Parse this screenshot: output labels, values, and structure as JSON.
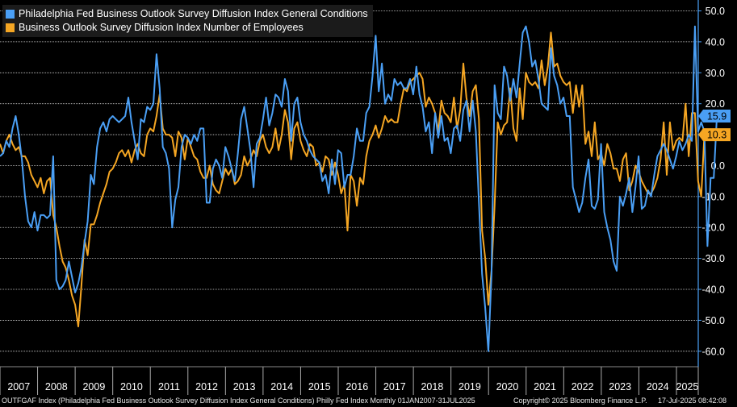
{
  "chart_data": {
    "type": "line",
    "legend_position": "top-left",
    "grid": true,
    "ylim": [
      -65,
      53
    ],
    "xlim": [
      2007.0,
      2025.58
    ],
    "y_ticks": [
      50,
      40,
      30,
      20,
      10,
      0,
      -10,
      -20,
      -30,
      -40,
      -50,
      -60
    ],
    "y_tick_labels": [
      "50.0",
      "40.0",
      "30.0",
      "20.0",
      "10.0",
      "0.0",
      "-10.0",
      "-20.0",
      "-30.0",
      "-40.0",
      "-50.0",
      "-60.0"
    ],
    "x_tick_labels": [
      "2007",
      "2008",
      "2009",
      "2010",
      "2011",
      "2012",
      "2013",
      "2014",
      "2015",
      "2016",
      "2017",
      "2018",
      "2019",
      "2020",
      "2021",
      "2022",
      "2023",
      "2024",
      "2025"
    ],
    "x_step": 0.0833,
    "series": [
      {
        "name": "Philadelphia Fed Business Outlook Survey Diffusion Index General Conditions",
        "color": "#4a9ff5",
        "last_label": "15.9",
        "values": [
          3,
          4,
          8,
          6,
          12,
          16,
          10,
          2,
          -10,
          -18,
          -20,
          -15,
          -21,
          -16,
          -16,
          -17,
          -16,
          3,
          -37,
          -40,
          -39,
          -37,
          -31,
          -36,
          -41,
          -38,
          -33,
          -25,
          -18,
          -3,
          -6,
          6,
          12,
          14,
          11,
          15,
          16,
          15,
          14,
          15,
          16,
          22,
          14,
          8,
          2,
          15,
          14,
          19,
          18,
          20,
          36,
          25,
          6,
          4,
          -1,
          -20,
          -11,
          -7,
          6,
          10,
          9,
          7,
          10,
          8,
          12,
          12,
          -12,
          -12,
          -1,
          2,
          0,
          -4,
          6,
          3,
          -1,
          -5,
          4,
          15,
          19,
          12,
          5,
          -7,
          7,
          9,
          15,
          22,
          13,
          17,
          23,
          22,
          19,
          28,
          24,
          8,
          20,
          22,
          14,
          10,
          8,
          5,
          3,
          2,
          1,
          -5,
          -3,
          -9,
          2,
          -6,
          5,
          4,
          -7,
          -3,
          -3,
          3,
          12,
          8,
          8,
          17,
          19,
          29,
          42,
          24,
          33,
          20,
          23,
          21,
          28,
          26,
          27,
          25,
          25,
          28,
          23,
          32,
          23,
          19,
          11,
          14,
          4,
          17,
          9,
          16,
          8,
          9,
          4,
          12,
          13,
          8,
          18,
          21,
          11,
          21,
          11,
          -12,
          -35,
          -46,
          -60,
          -35,
          26,
          17,
          15,
          32,
          29,
          21,
          28,
          22,
          33,
          43,
          45,
          40,
          32,
          34,
          28,
          20,
          19,
          18,
          38,
          29,
          26,
          20,
          22,
          16,
          16,
          -7,
          -11,
          -15,
          -12,
          -4,
          2,
          -13,
          -14,
          -11,
          7,
          -15,
          -20,
          -24,
          -31,
          -34,
          -10,
          -13,
          -9,
          -4,
          -15,
          -7,
          3,
          -14,
          -13,
          -8,
          -10,
          -3,
          3,
          5,
          7,
          5,
          2,
          -1,
          3,
          8,
          5,
          7,
          10,
          8,
          45,
          11,
          14,
          11,
          -26,
          -4,
          -4,
          16
        ]
      },
      {
        "name": "Business Outlook Survey Diffusion Index Number of Employees",
        "color": "#f5a623",
        "last_label": "10.3",
        "values": [
          7,
          4,
          8,
          10,
          7,
          5,
          6,
          3,
          3,
          1,
          -3,
          -5,
          -7,
          -4,
          -9,
          -5,
          -4,
          -16,
          -20,
          -26,
          -31,
          -33,
          -37,
          -42,
          -45,
          -52,
          -39,
          -24,
          -29,
          -19,
          -19,
          -16,
          -12,
          -9,
          -6,
          -2,
          -1,
          1,
          4,
          5,
          3,
          5,
          1,
          5,
          7,
          4,
          3,
          10,
          12,
          11,
          16,
          23,
          12,
          10,
          10,
          9,
          3,
          11,
          9,
          2,
          9,
          6,
          3,
          2,
          -2,
          -4,
          -4,
          0,
          -6,
          -8,
          -9,
          -5,
          -1,
          -3,
          -1,
          -6,
          -5,
          -3,
          3,
          0,
          2,
          5,
          3,
          8,
          10,
          6,
          4,
          6,
          12,
          5,
          10,
          18,
          14,
          2,
          12,
          14,
          8,
          5,
          3,
          7,
          6,
          0,
          1,
          -2,
          3,
          2,
          -3,
          1,
          -3,
          -9,
          -6,
          -21,
          -3,
          -5,
          -13,
          -4,
          -6,
          3,
          8,
          10,
          13,
          9,
          12,
          16,
          14,
          15,
          14,
          14,
          20,
          25,
          24,
          27,
          28,
          29,
          30,
          28,
          19,
          22,
          20,
          17,
          11,
          21,
          17,
          16,
          14,
          22,
          12,
          18,
          33,
          22,
          16,
          24,
          26,
          15,
          -21,
          -30,
          -45,
          -34,
          -13,
          14,
          10,
          13,
          14,
          25,
          12,
          8,
          25,
          15,
          30,
          27,
          26,
          27,
          25,
          34,
          26,
          32,
          43,
          32,
          33,
          29,
          27,
          26,
          27,
          17,
          26,
          19,
          26,
          7,
          11,
          3,
          14,
          2,
          4,
          0,
          7,
          4,
          -1,
          -1,
          -5,
          2,
          4,
          -8,
          -5,
          0,
          -2,
          -5,
          -7,
          -9,
          -9,
          -7,
          -4,
          2,
          14,
          -3,
          14,
          5,
          8,
          9,
          8,
          20,
          3,
          17,
          17,
          -5,
          -10,
          10
        ]
      }
    ]
  },
  "footer": {
    "source": "OUTFGAF Index (Philadelphia Fed Business Outlook Survey Diffusion Index General Conditions) Philly Fed Index  Monthly 01JAN2007-31JUL2025",
    "copyright": "Copyright© 2025 Bloomberg Finance L.P.",
    "timestamp": "17-Jul-2025 08:42:08"
  }
}
